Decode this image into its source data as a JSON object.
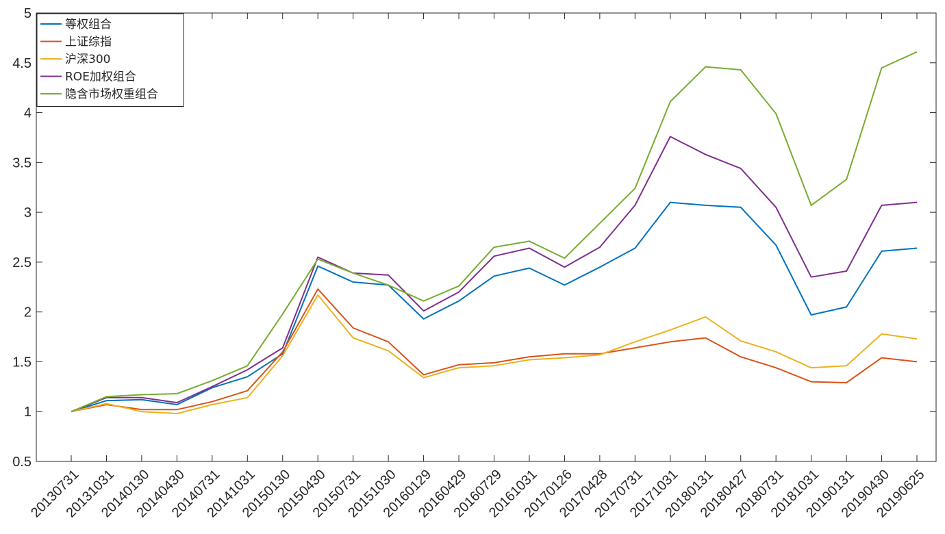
{
  "chart_data": {
    "type": "line",
    "title": "",
    "xlabel": "",
    "ylabel": "",
    "ylim": [
      0.5,
      5
    ],
    "yticks": [
      0.5,
      1,
      1.5,
      2,
      2.5,
      3,
      3.5,
      4,
      4.5,
      5
    ],
    "ytick_labels": [
      "0.5",
      "1",
      "1.5",
      "2",
      "2.5",
      "3",
      "3.5",
      "4",
      "4.5",
      "5"
    ],
    "grid": false,
    "legend_position": "top-left",
    "categories": [
      "20130731",
      "20131031",
      "20140130",
      "20140430",
      "20140731",
      "20141031",
      "20150130",
      "20150430",
      "20150731",
      "20151030",
      "20160129",
      "20160429",
      "20160729",
      "20161031",
      "20170126",
      "20170428",
      "20170731",
      "20171031",
      "20180131",
      "20180427",
      "20180731",
      "20181031",
      "20190131",
      "20190430",
      "20190625"
    ],
    "series": [
      {
        "name": "等权组合",
        "color": "#0072BD",
        "values": [
          1.0,
          1.11,
          1.12,
          1.07,
          1.24,
          1.35,
          1.58,
          2.46,
          2.3,
          2.27,
          1.93,
          2.11,
          2.36,
          2.44,
          2.27,
          2.45,
          2.64,
          3.1,
          3.07,
          3.05,
          2.67,
          1.97,
          2.05,
          2.61,
          2.64
        ]
      },
      {
        "name": "上证综指",
        "color": "#D95319",
        "values": [
          1.0,
          1.07,
          1.02,
          1.02,
          1.1,
          1.21,
          1.6,
          2.23,
          1.84,
          1.7,
          1.37,
          1.47,
          1.49,
          1.55,
          1.58,
          1.58,
          1.64,
          1.7,
          1.74,
          1.55,
          1.44,
          1.3,
          1.29,
          1.54,
          1.5
        ]
      },
      {
        "name": "沪深300",
        "color": "#EDB120",
        "values": [
          1.0,
          1.08,
          1.0,
          0.98,
          1.07,
          1.14,
          1.56,
          2.17,
          1.74,
          1.61,
          1.34,
          1.44,
          1.46,
          1.52,
          1.54,
          1.57,
          1.7,
          1.82,
          1.95,
          1.71,
          1.6,
          1.44,
          1.46,
          1.78,
          1.73
        ]
      },
      {
        "name": "ROE加权组合",
        "color": "#7E2F8E",
        "values": [
          1.0,
          1.14,
          1.14,
          1.09,
          1.25,
          1.42,
          1.64,
          2.55,
          2.39,
          2.37,
          2.01,
          2.2,
          2.56,
          2.64,
          2.45,
          2.65,
          3.07,
          3.76,
          3.58,
          3.44,
          3.05,
          2.35,
          2.41,
          3.07,
          3.1
        ]
      },
      {
        "name": "隐含市场权重组合",
        "color": "#77AC30",
        "values": [
          1.0,
          1.15,
          1.17,
          1.18,
          1.31,
          1.46,
          1.98,
          2.53,
          2.39,
          2.27,
          2.11,
          2.26,
          2.65,
          2.71,
          2.54,
          2.89,
          3.24,
          4.11,
          4.46,
          4.43,
          3.99,
          3.07,
          3.33,
          4.45,
          4.61
        ]
      }
    ]
  }
}
